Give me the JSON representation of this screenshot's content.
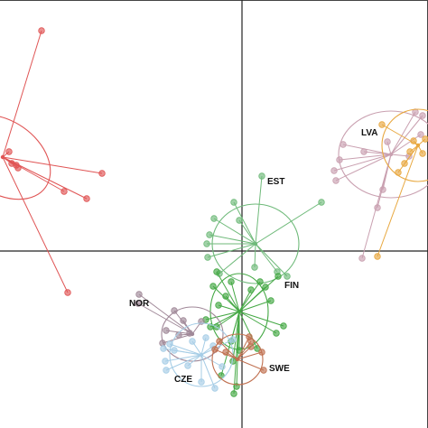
{
  "chart_data": {
    "type": "scatter",
    "title": "",
    "xlabel": "",
    "ylabel": "",
    "xlim": [
      -268,
      206
    ],
    "ylim": [
      -196,
      278
    ],
    "axes": {
      "x_zero_line": true,
      "y_zero_line": true
    },
    "grid": false,
    "legend": "none",
    "series": [
      {
        "name": "",
        "color": "#e05555",
        "centroid": [
          -265,
          104
        ],
        "ellipse": {
          "rx": 58,
          "ry": 40,
          "angle": 35
        },
        "points": [
          [
            -222,
            244
          ],
          [
            -248,
            92
          ],
          [
            -250,
            95
          ],
          [
            -155,
            86
          ],
          [
            -197,
            66
          ],
          [
            -172,
            58
          ],
          [
            -193,
            -46
          ],
          [
            -258,
            110
          ],
          [
            -255,
            97
          ]
        ]
      },
      {
        "name": "LVA",
        "label_pos": [
          132,
          128
        ],
        "color": "#c9a0b0",
        "centroid": [
          165,
          107
        ],
        "ellipse": {
          "rx": 58,
          "ry": 48,
          "angle": 0
        },
        "points": [
          [
            156,
            68
          ],
          [
            150,
            48
          ],
          [
            161,
            121
          ],
          [
            104,
            78
          ],
          [
            102,
            89
          ],
          [
            108,
            101
          ],
          [
            112,
            118
          ],
          [
            133,
            -8
          ],
          [
            185,
            105
          ],
          [
            198,
            129
          ],
          [
            192,
            154
          ],
          [
            200,
            150
          ],
          [
            135,
            110
          ]
        ]
      },
      {
        "name": "",
        "color": "#e8a840",
        "centroid": [
          195,
          117
        ],
        "ellipse": {
          "rx": 40,
          "ry": 40,
          "angle": 0
        },
        "points": [
          [
            186,
            110
          ],
          [
            190,
            122
          ],
          [
            180,
            97
          ],
          [
            173,
            87
          ],
          [
            155,
            140
          ],
          [
            150,
            -6
          ],
          [
            200,
            108
          ],
          [
            203,
            124
          ]
        ]
      },
      {
        "name": "EST",
        "label_pos": [
          28,
          74
        ],
        "color": "#6fba7a",
        "centroid": [
          15,
          8
        ],
        "ellipse": {
          "rx": 48,
          "ry": 44,
          "angle": 0
        },
        "points": [
          [
            -9,
            54
          ],
          [
            22,
            83
          ],
          [
            -31,
            36
          ],
          [
            -3,
            34
          ],
          [
            -36,
            18
          ],
          [
            -39,
            8
          ],
          [
            88,
            54
          ],
          [
            -25,
            -25
          ],
          [
            -38,
            -7
          ],
          [
            39,
            -23
          ],
          [
            50,
            -28
          ],
          [
            14,
            -18
          ]
        ]
      },
      {
        "name": "FIN",
        "label_pos": [
          47,
          -41
        ],
        "color": "#44a844",
        "centroid": [
          -3,
          -67
        ],
        "ellipse": {
          "rx": 32,
          "ry": 42,
          "angle": 0
        },
        "points": [
          [
            -32,
            -39
          ],
          [
            -18,
            -50
          ],
          [
            -26,
            -60
          ],
          [
            -40,
            -76
          ],
          [
            -35,
            -84
          ],
          [
            -28,
            -84
          ],
          [
            -12,
            -100
          ],
          [
            -3,
            -110
          ],
          [
            17,
            -108
          ],
          [
            38,
            -91
          ],
          [
            46,
            -83
          ],
          [
            32,
            -55
          ],
          [
            10,
            -43
          ],
          [
            -23,
            -138
          ],
          [
            -10,
            -122
          ],
          [
            26,
            -40
          ],
          [
            40,
            -28
          ],
          [
            -28,
            -23
          ],
          [
            -12,
            -34
          ],
          [
            20,
            -34
          ],
          [
            -6,
            -150
          ],
          [
            -9,
            -158
          ]
        ]
      },
      {
        "name": "NOR",
        "label_pos": [
          -125,
          -61
        ],
        "color": "#a08898",
        "centroid": [
          -55,
          -92
        ],
        "ellipse": {
          "rx": 34,
          "ry": 30,
          "angle": 0
        },
        "points": [
          [
            -114,
            -48
          ],
          [
            -115,
            -58
          ],
          [
            -75,
            -66
          ],
          [
            -65,
            -77
          ],
          [
            -84,
            -88
          ],
          [
            -88,
            -102
          ],
          [
            -70,
            -93
          ],
          [
            -58,
            -91
          ],
          [
            -45,
            -78
          ]
        ]
      },
      {
        "name": "CZE",
        "label_pos": [
          -75,
          -145
        ],
        "color": "#a6cde6",
        "centroid": [
          -45,
          -115
        ],
        "ellipse": {
          "rx": 35,
          "ry": 35,
          "angle": 0
        },
        "points": [
          [
            -80,
            -103
          ],
          [
            -75,
            -110
          ],
          [
            -85,
            -122
          ],
          [
            -84,
            -132
          ],
          [
            -60,
            -127
          ],
          [
            -45,
            -145
          ],
          [
            -30,
            -152
          ],
          [
            -22,
            -128
          ],
          [
            -55,
            -100
          ],
          [
            -40,
            -96
          ],
          [
            -10,
            -98
          ],
          [
            -87,
            -108
          ],
          [
            -32,
            -105
          ]
        ]
      },
      {
        "name": "SWE",
        "label_pos": [
          30,
          -133
        ],
        "color": "#c07050",
        "centroid": [
          -5,
          -120
        ],
        "ellipse": {
          "rx": 28,
          "ry": 28,
          "angle": 0
        },
        "points": [
          [
            -30,
            -109
          ],
          [
            -25,
            -100
          ],
          [
            24,
            -132
          ],
          [
            8,
            -95
          ],
          [
            10,
            -106
          ],
          [
            -18,
            -112
          ],
          [
            22,
            -112
          ],
          [
            10,
            -100
          ]
        ]
      }
    ]
  }
}
